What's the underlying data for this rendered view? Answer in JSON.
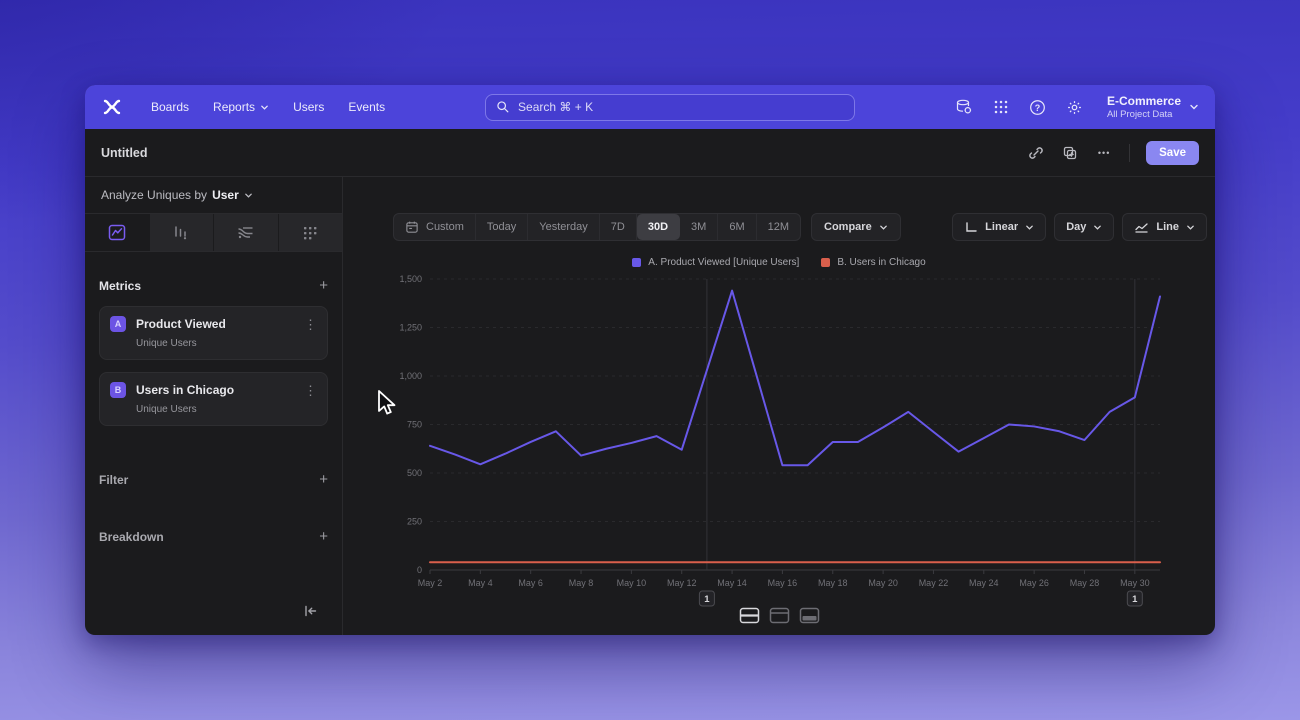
{
  "colors": {
    "brand_navbar": "#4c44da",
    "accent_purple": "#7856ff",
    "save_button": "#8a87f1"
  },
  "navbar": {
    "items": [
      {
        "label": "Boards",
        "has_chevron": false
      },
      {
        "label": "Reports",
        "has_chevron": true
      },
      {
        "label": "Users",
        "has_chevron": false
      },
      {
        "label": "Events",
        "has_chevron": false
      }
    ],
    "search_placeholder": "Search  ⌘ + K",
    "project": {
      "name": "E-Commerce",
      "subtitle": "All Project Data"
    }
  },
  "toolbar": {
    "title": "Untitled",
    "more_label": "•••",
    "save_label": "Save"
  },
  "sidebar": {
    "analyze_prefix": "Analyze Uniques by",
    "analyze_value": "User",
    "metrics_label": "Metrics",
    "metrics": [
      {
        "badge": "A",
        "title": "Product Viewed",
        "subtitle": "Unique Users",
        "menu": "⋮"
      },
      {
        "badge": "B",
        "title": "Users in Chicago",
        "subtitle": "Unique Users",
        "menu": "⋮"
      }
    ],
    "filter_label": "Filter",
    "breakdown_label": "Breakdown",
    "add_label": "+"
  },
  "controls": {
    "ranges": [
      "Custom",
      "Today",
      "Yesterday",
      "7D",
      "30D",
      "3M",
      "6M",
      "12M"
    ],
    "selected_range": "30D",
    "compare_label": "Compare",
    "scale_label": "Linear",
    "interval_label": "Day",
    "chart_type_label": "Line"
  },
  "chart_data": {
    "type": "line",
    "x": [
      "May 2",
      "May 3",
      "May 4",
      "May 5",
      "May 6",
      "May 7",
      "May 8",
      "May 9",
      "May 10",
      "May 11",
      "May 12",
      "May 13",
      "May 14",
      "May 15",
      "May 16",
      "May 17",
      "May 18",
      "May 19",
      "May 20",
      "May 21",
      "May 22",
      "May 23",
      "May 24",
      "May 25",
      "May 26",
      "May 27",
      "May 28",
      "May 29",
      "May 30",
      "May 31"
    ],
    "x_tick_step": 2,
    "ylim": [
      0,
      1500
    ],
    "y_ticks": {
      "values": [
        0,
        250,
        500,
        750,
        1000,
        1250,
        1500
      ],
      "labels": [
        "0",
        "250",
        "500",
        "750",
        "1,000",
        "1,250",
        "1,500"
      ]
    },
    "grid": "horizontal-dashed",
    "legend_position": "top-center",
    "series": [
      {
        "name": "A. Product Viewed [Unique Users]",
        "color": "#6858e8",
        "values": [
          640,
          595,
          545,
          600,
          660,
          715,
          590,
          625,
          655,
          690,
          620,
          1030,
          1440,
          990,
          540,
          540,
          660,
          660,
          735,
          815,
          712,
          610,
          680,
          750,
          740,
          715,
          670,
          815,
          890,
          1410
        ]
      },
      {
        "name": "B. Users in Chicago",
        "color": "#d95f4c",
        "values": [
          40,
          40,
          40,
          40,
          40,
          40,
          40,
          40,
          40,
          40,
          40,
          40,
          40,
          40,
          40,
          40,
          40,
          40,
          40,
          40,
          40,
          40,
          40,
          40,
          40,
          40,
          40,
          40,
          40,
          40
        ]
      }
    ],
    "annotations": [
      {
        "label": "1",
        "x_index": 11
      },
      {
        "label": "1",
        "x_index": 28
      }
    ]
  }
}
